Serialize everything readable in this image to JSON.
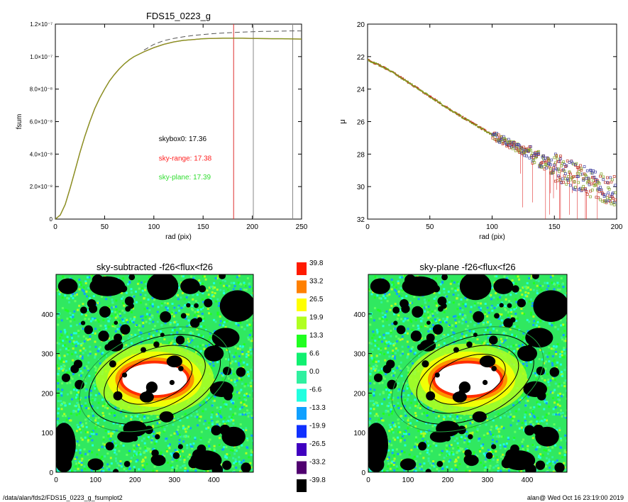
{
  "title_left": "FDS15_0223_g",
  "footer": {
    "path": "/data/alan/fds2/FDS15_0223_g_fsumplot2",
    "stamp": "alan@  Wed Oct 16 23:19:00 2019"
  },
  "chart_data": [
    {
      "type": "line",
      "title": "FDS15_0223_g",
      "xlabel": "rad (pix)",
      "ylabel": "fsum",
      "xlim": [
        0,
        250
      ],
      "ylim": [
        0,
        1.2e-07
      ],
      "x_ticks": [
        "0",
        "50",
        "100",
        "150",
        "200",
        "250"
      ],
      "y_ticks": [
        "0",
        "2.0×10⁻⁸",
        "4.0×10⁻⁸",
        "6.0×10⁻⁸",
        "8.0×10⁻⁸",
        "1.0×10⁻⁷",
        "1.2×10⁻⁷"
      ],
      "x": [
        0,
        5,
        10,
        15,
        20,
        25,
        30,
        35,
        40,
        45,
        50,
        55,
        60,
        65,
        70,
        75,
        80,
        90,
        100,
        110,
        120,
        130,
        140,
        150,
        160,
        170,
        180,
        190,
        200,
        210,
        220,
        230,
        240,
        250
      ],
      "series": [
        {
          "color": "#c03020",
          "values": [
            0,
            2.5e-09,
            9e-09,
            1.9e-08,
            3e-08,
            4.1e-08,
            5.1e-08,
            6e-08,
            6.8e-08,
            7.45e-08,
            8e-08,
            8.5e-08,
            8.9e-08,
            9.25e-08,
            9.55e-08,
            9.8e-08,
            1e-07,
            1.03e-07,
            1.055e-07,
            1.075e-07,
            1.09e-07,
            1.1e-07,
            1.105e-07,
            1.11e-07,
            1.112e-07,
            1.113e-07,
            1.113e-07,
            1.113e-07,
            1.112e-07,
            1.111e-07,
            1.11e-07,
            1.11e-07,
            1.109e-07,
            1.108e-07
          ]
        },
        {
          "color": "#7fa020",
          "values": [
            0,
            2.5e-09,
            9e-09,
            1.9e-08,
            3e-08,
            4.1e-08,
            5.1e-08,
            6e-08,
            6.8e-08,
            7.45e-08,
            8e-08,
            8.5e-08,
            8.9e-08,
            9.25e-08,
            9.55e-08,
            9.8e-08,
            1e-07,
            1.03e-07,
            1.055e-07,
            1.075e-07,
            1.09e-07,
            1.1e-07,
            1.105e-07,
            1.11e-07,
            1.112e-07,
            1.113e-07,
            1.113e-07,
            1.113e-07,
            1.112e-07,
            1.111e-07,
            1.11e-07,
            1.11e-07,
            1.109e-07,
            1.108e-07
          ]
        },
        {
          "color": "#555555",
          "dashed": true,
          "values": [
            null,
            null,
            null,
            null,
            null,
            null,
            null,
            null,
            null,
            null,
            null,
            null,
            null,
            null,
            null,
            null,
            null,
            1.04e-07,
            1.075e-07,
            1.098e-07,
            1.112e-07,
            1.122e-07,
            1.13e-07,
            1.136e-07,
            1.141e-07,
            1.145e-07,
            1.148e-07,
            1.151e-07,
            1.153e-07,
            1.155e-07,
            1.156e-07,
            1.157e-07,
            1.158e-07,
            1.158e-07
          ]
        }
      ],
      "vlines": [
        {
          "x": 181,
          "color": "#e03030"
        },
        {
          "x": 201,
          "color": "#888888"
        },
        {
          "x": 241,
          "color": "#888888"
        }
      ],
      "annotations": [
        {
          "text": "skybox0: 17.36",
          "color": "#000000",
          "x": 105,
          "y": 4.8e-08
        },
        {
          "text": "sky-range: 17.38",
          "color": "#ff2020",
          "x": 105,
          "y": 3.6e-08
        },
        {
          "text": "sky-plane: 17.39",
          "color": "#30dd30",
          "x": 105,
          "y": 2.45e-08
        }
      ]
    },
    {
      "type": "scatter",
      "xlabel": "rad (pix)",
      "ylabel": "μ",
      "xlim": [
        0,
        200
      ],
      "ylim": [
        32,
        20
      ],
      "x_ticks": [
        "0",
        "50",
        "100",
        "150",
        "200"
      ],
      "y_ticks": [
        "20",
        "22",
        "24",
        "26",
        "28",
        "30",
        "32"
      ],
      "profile": {
        "x": [
          0,
          10,
          20,
          30,
          40,
          50,
          60,
          70,
          80,
          90,
          100,
          110,
          120,
          130,
          140,
          150,
          160,
          170,
          180,
          190,
          200
        ],
        "mu": [
          22.2,
          22.55,
          22.95,
          23.45,
          23.95,
          24.45,
          24.95,
          25.45,
          25.9,
          26.35,
          26.8,
          27.2,
          27.6,
          28.0,
          28.4,
          28.8,
          29.15,
          29.5,
          29.8,
          30.1,
          30.3
        ]
      },
      "colors": [
        "#c03020",
        "#7fa020",
        "#4040a0"
      ]
    },
    {
      "type": "heatmap",
      "title": "sky-subtracted -f26<flux<f26",
      "xlim": [
        0,
        500
      ],
      "ylim": [
        0,
        500
      ],
      "x_ticks": [
        "0",
        "100",
        "200",
        "300",
        "400"
      ],
      "y_ticks": [
        "0",
        "100",
        "200",
        "300",
        "400"
      ]
    },
    {
      "type": "heatmap",
      "title": "sky-plane -f26<flux<f26",
      "xlim": [
        0,
        500
      ],
      "ylim": [
        0,
        500
      ],
      "x_ticks": [
        "0",
        "100",
        "200",
        "300",
        "400"
      ],
      "y_ticks": [
        "0",
        "100",
        "200",
        "300",
        "400"
      ]
    }
  ],
  "colorbar": {
    "labels": [
      "39.8",
      "33.2",
      "26.5",
      "19.9",
      "13.3",
      "6.6",
      "0.0",
      "-6.6",
      "-13.3",
      "-19.9",
      "-26.5",
      "-33.2",
      "-39.8"
    ],
    "colors": [
      "#ff1a00",
      "#ff8000",
      "#ffff00",
      "#b0ff20",
      "#20ff20",
      "#10f070",
      "#30f0a0",
      "#20ffe0",
      "#10a0ff",
      "#1030ff",
      "#4000c0",
      "#500070",
      "#000000"
    ]
  },
  "ellipses": {
    "center": [
      250,
      235
    ],
    "axes": [
      [
        100,
        55
      ],
      [
        135,
        75
      ],
      [
        175,
        100
      ],
      [
        200,
        118
      ]
    ],
    "angle_deg": 22
  }
}
